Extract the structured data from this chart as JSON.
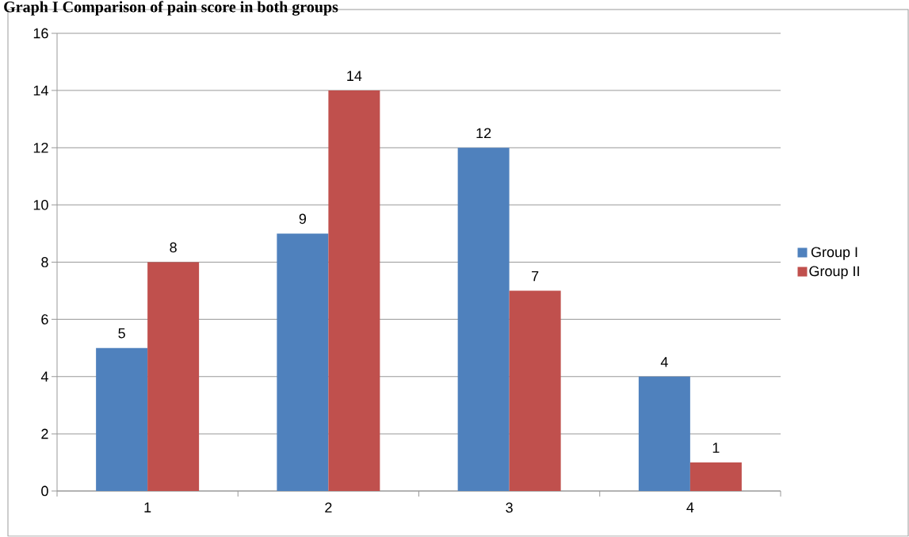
{
  "chart_data": {
    "type": "bar",
    "title": "Graph I Comparison of pain score in both groups",
    "categories": [
      "1",
      "2",
      "3",
      "4"
    ],
    "series": [
      {
        "name": "Group I",
        "color": "#4f81bd",
        "values": [
          5,
          9,
          12,
          4
        ]
      },
      {
        "name": "Group II",
        "color": "#c0504d",
        "values": [
          8,
          14,
          7,
          1
        ]
      }
    ],
    "ylim": [
      0,
      16
    ],
    "yticks": [
      0,
      2,
      4,
      6,
      8,
      10,
      12,
      14,
      16
    ],
    "grid": "y",
    "legend": "right",
    "data_labels": true
  }
}
